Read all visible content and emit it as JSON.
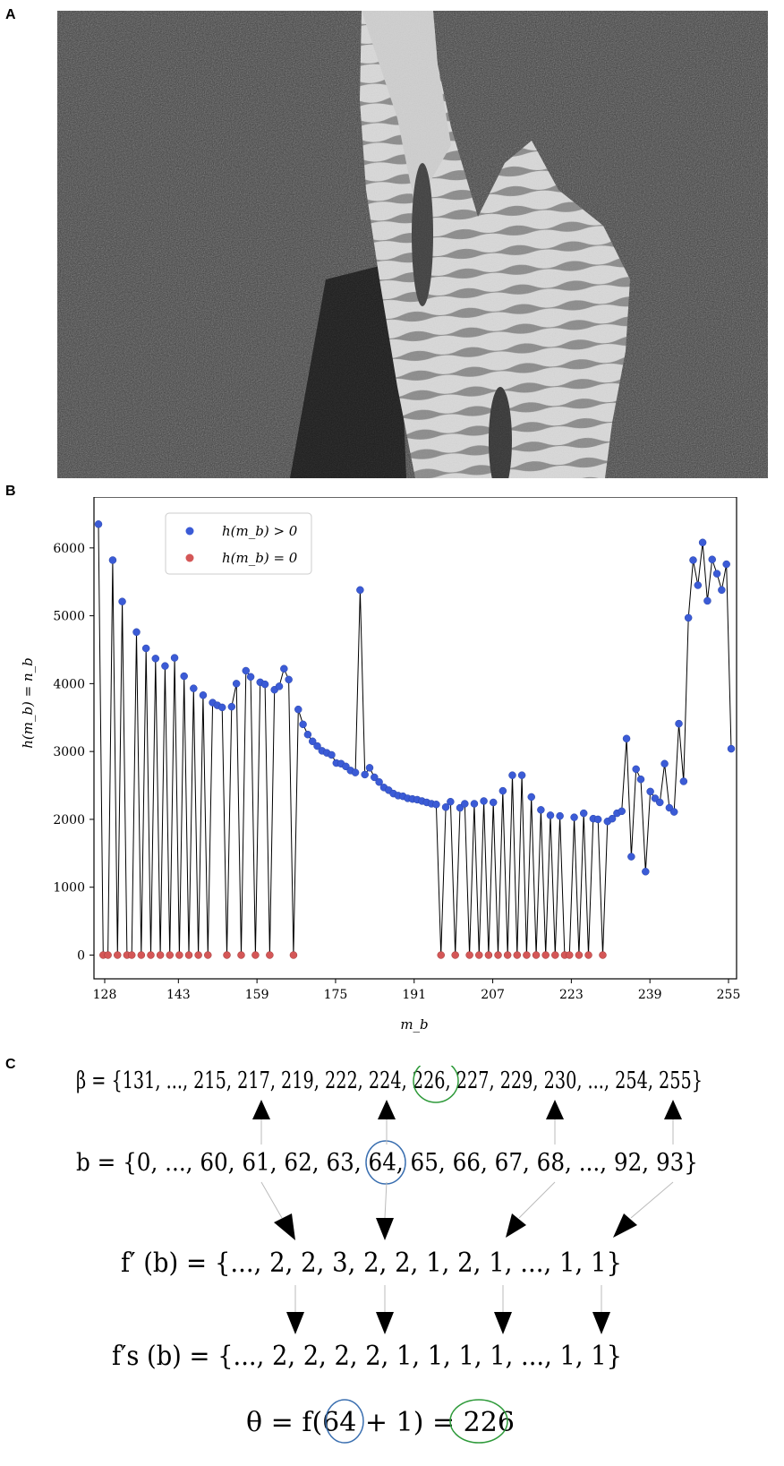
{
  "panels": {
    "a": "A",
    "b": "B",
    "c": "C"
  },
  "chart_data": {
    "type": "scatter",
    "xlabel": "m_b",
    "ylabel": "h(m_b) = n_b",
    "xlim": [
      127,
      256
    ],
    "ylim": [
      -350,
      6750
    ],
    "xticks": [
      128,
      143,
      159,
      175,
      191,
      207,
      223,
      239,
      255
    ],
    "yticks": [
      0,
      1000,
      2000,
      3000,
      4000,
      5000,
      6000
    ],
    "legend_position": "upper-left",
    "legend": [
      "h(m_b) > 0",
      "h(m_b) = 0"
    ],
    "colors": {
      "positive": "#3b5bd6",
      "zero": "#d45757",
      "line": "#000000"
    },
    "series": [
      {
        "name": "h(m_b)",
        "points": [
          [
            128,
            6350
          ],
          [
            129,
            0
          ],
          [
            130,
            0
          ],
          [
            131,
            5820
          ],
          [
            132,
            0
          ],
          [
            133,
            5210
          ],
          [
            134,
            0
          ],
          [
            135,
            0
          ],
          [
            136,
            4760
          ],
          [
            137,
            0
          ],
          [
            138,
            4520
          ],
          [
            139,
            0
          ],
          [
            140,
            4370
          ],
          [
            141,
            0
          ],
          [
            142,
            4260
          ],
          [
            143,
            0
          ],
          [
            144,
            4380
          ],
          [
            145,
            0
          ],
          [
            146,
            4110
          ],
          [
            147,
            0
          ],
          [
            148,
            3930
          ],
          [
            149,
            0
          ],
          [
            150,
            3830
          ],
          [
            151,
            0
          ],
          [
            152,
            3720
          ],
          [
            153,
            3680
          ],
          [
            154,
            3650
          ],
          [
            155,
            0
          ],
          [
            156,
            3660
          ],
          [
            157,
            4000
          ],
          [
            158,
            0
          ],
          [
            159,
            4190
          ],
          [
            160,
            4100
          ],
          [
            161,
            0
          ],
          [
            162,
            4020
          ],
          [
            163,
            3990
          ],
          [
            164,
            0
          ],
          [
            165,
            3910
          ],
          [
            166,
            3960
          ],
          [
            167,
            4220
          ],
          [
            168,
            4060
          ],
          [
            169,
            0
          ],
          [
            170,
            3620
          ],
          [
            171,
            3400
          ],
          [
            172,
            3250
          ],
          [
            173,
            3150
          ],
          [
            174,
            3080
          ],
          [
            175,
            3010
          ],
          [
            176,
            2980
          ],
          [
            177,
            2950
          ],
          [
            178,
            2830
          ],
          [
            179,
            2820
          ],
          [
            180,
            2780
          ],
          [
            181,
            2720
          ],
          [
            182,
            2690
          ],
          [
            183,
            5380
          ],
          [
            184,
            2660
          ],
          [
            185,
            2760
          ],
          [
            186,
            2620
          ],
          [
            187,
            2550
          ],
          [
            188,
            2470
          ],
          [
            189,
            2430
          ],
          [
            190,
            2380
          ],
          [
            191,
            2350
          ],
          [
            192,
            2340
          ],
          [
            193,
            2310
          ],
          [
            194,
            2300
          ],
          [
            195,
            2290
          ],
          [
            196,
            2270
          ],
          [
            197,
            2250
          ],
          [
            198,
            2230
          ],
          [
            199,
            2220
          ],
          [
            200,
            0
          ],
          [
            201,
            2180
          ],
          [
            202,
            2260
          ],
          [
            203,
            0
          ],
          [
            204,
            2170
          ],
          [
            205,
            2230
          ],
          [
            206,
            0
          ],
          [
            207,
            2230
          ],
          [
            208,
            0
          ],
          [
            209,
            2270
          ],
          [
            210,
            0
          ],
          [
            211,
            2250
          ],
          [
            212,
            0
          ],
          [
            213,
            2420
          ],
          [
            214,
            0
          ],
          [
            215,
            2650
          ],
          [
            216,
            0
          ],
          [
            217,
            2650
          ],
          [
            218,
            0
          ],
          [
            219,
            2330
          ],
          [
            220,
            0
          ],
          [
            221,
            2140
          ],
          [
            222,
            0
          ],
          [
            223,
            2060
          ],
          [
            224,
            0
          ],
          [
            225,
            2050
          ],
          [
            226,
            0
          ],
          [
            227,
            0
          ],
          [
            228,
            2030
          ],
          [
            229,
            0
          ],
          [
            230,
            2090
          ],
          [
            231,
            0
          ],
          [
            232,
            2010
          ],
          [
            233,
            2000
          ],
          [
            234,
            0
          ],
          [
            235,
            1970
          ],
          [
            236,
            2010
          ],
          [
            237,
            2090
          ],
          [
            238,
            2120
          ],
          [
            239,
            3190
          ],
          [
            240,
            1450
          ],
          [
            241,
            2740
          ],
          [
            242,
            2590
          ],
          [
            243,
            1230
          ],
          [
            244,
            2410
          ],
          [
            245,
            2310
          ],
          [
            246,
            2250
          ],
          [
            247,
            2820
          ],
          [
            248,
            2170
          ],
          [
            249,
            2110
          ],
          [
            250,
            3410
          ],
          [
            251,
            2560
          ],
          [
            252,
            4970
          ],
          [
            253,
            5820
          ],
          [
            254,
            5450
          ],
          [
            255,
            6080
          ],
          [
            256,
            5220
          ],
          [
            257,
            5830
          ],
          [
            258,
            5620
          ],
          [
            259,
            5380
          ],
          [
            260,
            5760
          ],
          [
            261,
            3040
          ]
        ]
      }
    ]
  },
  "diagram": {
    "beta_line": "β = {131, ..., 215, 217, 219, 222, 224, 226, 227, 229, 230, ..., 254, 255}",
    "b_line": "b = {0, ..., 60, 61, 62, 63, 64, 65, 66, 67, 68, ..., 92, 93}",
    "fprime_line": "f′ (b) = {..., 2, 2, 3, 2, 2, 1, 2, 1, ..., 1, 1}",
    "fsprime_line": "f′s (b) = {..., 2, 2, 2, 2, 1, 1, 1, 1, ..., 1, 1}",
    "theta_line": "θ = f(64 + 1) = 226",
    "colors": {
      "blue_circle": "#3a6fb0",
      "green_circle": "#2e9a3a"
    }
  }
}
